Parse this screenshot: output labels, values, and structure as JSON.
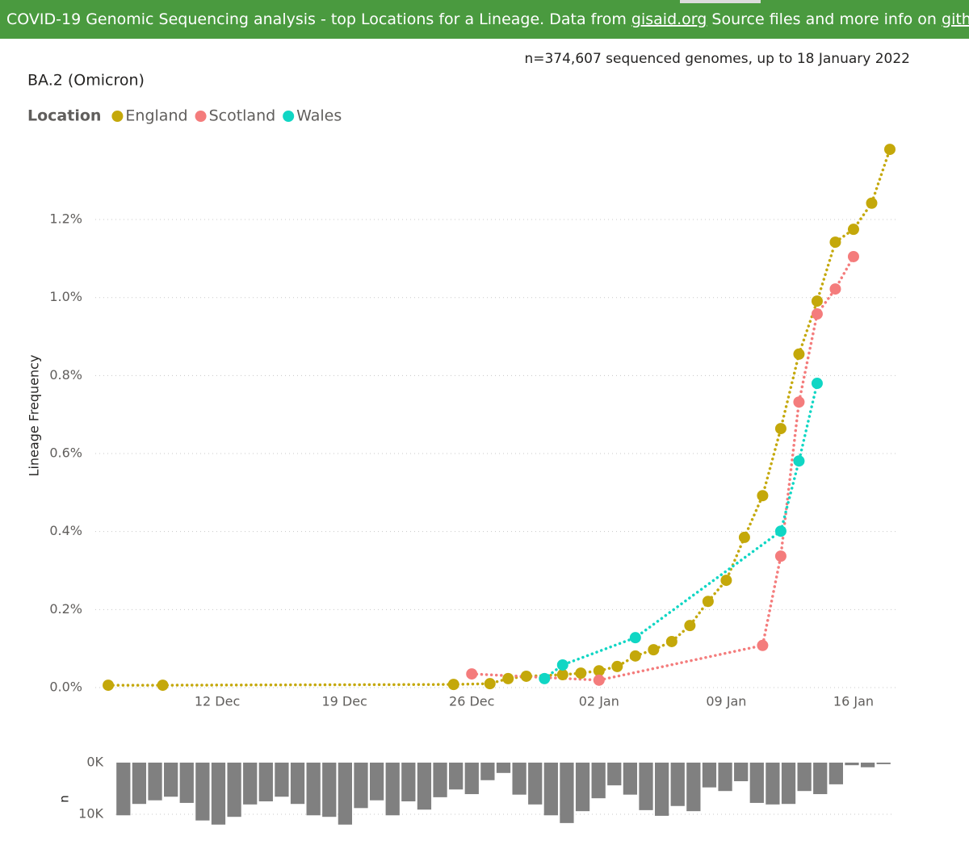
{
  "header": {
    "text_before": "COVID-19 Genomic Sequencing analysis - top Locations for a Lineage. Data from",
    "link1": "gisaid.org",
    "text_middle": "Source files and more info on",
    "link2": "github",
    "text_end": "."
  },
  "chart_data": [
    {
      "type": "line",
      "title": "BA.2 (Omicron)",
      "subtitle": "n=374,607 sequenced genomes, up to 18 January 2022",
      "y_label": "Lineage Frequency",
      "legend_title": "Location",
      "legend": "top-left",
      "grid": true,
      "xlim": [
        "05 Dec",
        "19 Jan"
      ],
      "xticks": [
        "12 Dec",
        "19 Dec",
        "26 Dec",
        "02 Jan",
        "09 Jan",
        "16 Jan"
      ],
      "ylim": [
        0,
        1.4
      ],
      "yticks": [
        {
          "value": 0,
          "label": "0.0%"
        },
        {
          "value": 0.2,
          "label": "0.2%"
        },
        {
          "value": 0.4,
          "label": "0.4%"
        },
        {
          "value": 0.6,
          "label": "0.6%"
        },
        {
          "value": 0.8,
          "label": "0.8%"
        },
        {
          "value": 1.0,
          "label": "1.0%"
        },
        {
          "value": 1.2,
          "label": "1.2%"
        }
      ],
      "series": [
        {
          "name": "England",
          "color": "#c4a80a",
          "x": [
            "06 Dec",
            "09 Dec",
            "25 Dec",
            "27 Dec",
            "28 Dec",
            "29 Dec",
            "31 Dec",
            "01 Jan",
            "02 Jan",
            "03 Jan",
            "04 Jan",
            "05 Jan",
            "06 Jan",
            "07 Jan",
            "08 Jan",
            "09 Jan",
            "10 Jan",
            "11 Jan",
            "12 Jan",
            "13 Jan",
            "14 Jan",
            "15 Jan",
            "16 Jan",
            "17 Jan",
            "18 Jan"
          ],
          "values": [
            0.006,
            0.006,
            0.008,
            0.01,
            0.023,
            0.029,
            0.033,
            0.037,
            0.043,
            0.054,
            0.081,
            0.097,
            0.118,
            0.159,
            0.221,
            0.275,
            0.385,
            0.492,
            0.664,
            0.855,
            0.991,
            1.142,
            1.175,
            1.242,
            1.38
          ]
        },
        {
          "name": "Scotland",
          "color": "#f47c7c",
          "x": [
            "26 Dec",
            "02 Jan",
            "11 Jan",
            "12 Jan",
            "13 Jan",
            "14 Jan",
            "15 Jan",
            "16 Jan"
          ],
          "values": [
            0.035,
            0.019,
            0.108,
            0.337,
            0.732,
            0.958,
            1.022,
            1.105
          ]
        },
        {
          "name": "Wales",
          "color": "#10d6c4",
          "x": [
            "30 Dec",
            "31 Dec",
            "04 Jan",
            "12 Jan",
            "13 Jan",
            "14 Jan"
          ],
          "values": [
            0.023,
            0.058,
            0.128,
            0.401,
            0.581,
            0.78
          ]
        }
      ]
    },
    {
      "type": "bar",
      "y_label": "n",
      "color": "#808080",
      "yreverse": true,
      "grid": true,
      "ylim": [
        0,
        12500
      ],
      "yticks": [
        {
          "value": 0,
          "label": "0K"
        },
        {
          "value": 10000,
          "label": "10K"
        }
      ],
      "categories": [
        null,
        null,
        null,
        null,
        null,
        null,
        null,
        null,
        null,
        null,
        null,
        null,
        null,
        null,
        null,
        null,
        null,
        null,
        null,
        null,
        null,
        null,
        null,
        null,
        null,
        null,
        null,
        null,
        null,
        null,
        null,
        null,
        null,
        null,
        null,
        null,
        null,
        null,
        null,
        null,
        null,
        null,
        null,
        null,
        null,
        null,
        null,
        null,
        null
      ],
      "values": [
        10200,
        8000,
        7300,
        6600,
        7800,
        11200,
        12000,
        10500,
        8100,
        7500,
        6600,
        8000,
        10200,
        10500,
        12000,
        8800,
        7300,
        10200,
        7500,
        9100,
        6700,
        5200,
        6100,
        3400,
        2000,
        6200,
        8100,
        10200,
        11700,
        9400,
        6900,
        4400,
        6200,
        9200,
        10300,
        8400,
        9400,
        4800,
        5500,
        3600,
        7800,
        8100,
        8000,
        5500,
        6100,
        4200,
        500,
        900,
        300
      ]
    }
  ]
}
